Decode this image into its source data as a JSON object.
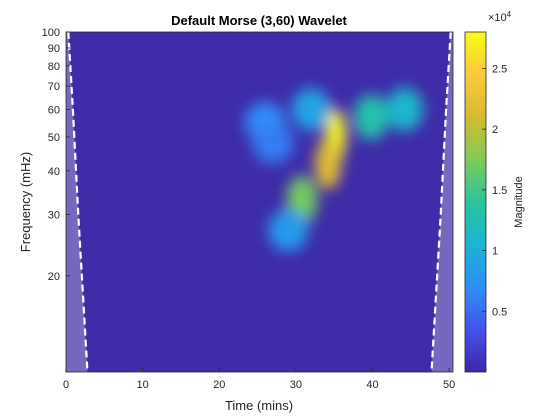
{
  "chart_data": {
    "type": "heatmap",
    "title": "Default Morse (3,60) Wavelet",
    "xlabel": "Time (mins)",
    "ylabel": "Frequency (mHz)",
    "xlim": [
      0,
      50.5
    ],
    "ylim": [
      10.6,
      100
    ],
    "yscale": "log",
    "xticks": [
      0,
      10,
      20,
      30,
      40,
      50
    ],
    "yticks": [
      20,
      30,
      40,
      50,
      60,
      70,
      80,
      90,
      100
    ],
    "colorbar": {
      "label": "Magnitude",
      "exponent": "×10",
      "exponent_power": "4",
      "range": [
        0,
        28000
      ],
      "ticks": [
        0.5,
        1,
        1.5,
        2,
        2.5
      ],
      "colormap": [
        "#3e26a8",
        "#4354e9",
        "#2e8ef7",
        "#1ab4d4",
        "#2ac49b",
        "#7ecb56",
        "#d6ba30",
        "#fcc93b",
        "#f9fb15"
      ]
    },
    "cone_of_influence": {
      "color": "#7b6fc0",
      "left": [
        [
          0.3,
          100
        ],
        [
          0.9,
          60
        ],
        [
          1.6,
          30
        ],
        [
          2.8,
          10.6
        ]
      ],
      "right": [
        [
          50.2,
          100
        ],
        [
          49.6,
          60
        ],
        [
          48.9,
          30
        ],
        [
          47.7,
          10.6
        ]
      ]
    },
    "hotspots": [
      {
        "t": 35.2,
        "f": 50,
        "magnitude": 28000
      },
      {
        "t": 34.2,
        "f": 42,
        "magnitude": 22000
      },
      {
        "t": 30.8,
        "f": 33,
        "magnitude": 17000
      },
      {
        "t": 39.8,
        "f": 57,
        "magnitude": 13000
      },
      {
        "t": 44.2,
        "f": 60,
        "magnitude": 11000
      },
      {
        "t": 32.0,
        "f": 60,
        "magnitude": 9000
      },
      {
        "t": 26.0,
        "f": 55,
        "magnitude": 7000
      },
      {
        "t": 29.0,
        "f": 27,
        "magnitude": 8000
      },
      {
        "t": 27.0,
        "f": 48,
        "magnitude": 6000
      }
    ]
  }
}
